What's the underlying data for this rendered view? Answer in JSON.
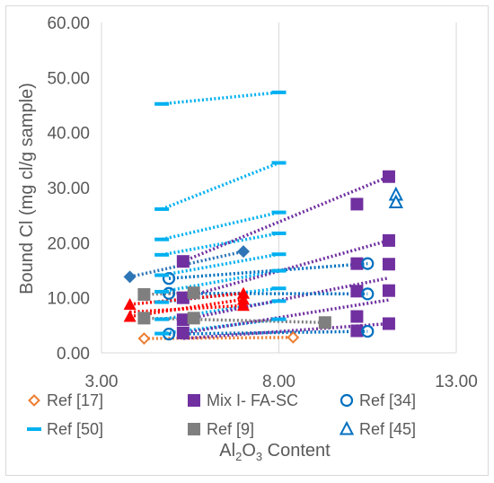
{
  "chart_data": {
    "type": "scatter",
    "title": "",
    "xlabel": "Al2O3 Content",
    "xlabel_parts": {
      "pre": "Al",
      "sub1": "2",
      "mid": "O",
      "sub2": "3",
      "post": " Content"
    },
    "ylabel": "Bound Cl (mg cl/g sample)",
    "xlim": [
      3.0,
      13.0
    ],
    "ylim": [
      0.0,
      60.0
    ],
    "x_ticks": [
      3.0,
      8.0,
      13.0
    ],
    "x_tick_labels": [
      "3.00",
      "8.00",
      "13.00"
    ],
    "y_ticks": [
      0,
      10,
      20,
      30,
      40,
      50,
      60
    ],
    "y_tick_labels": [
      "0.00",
      "10.00",
      "20.00",
      "30.00",
      "40.00",
      "50.00",
      "60.00"
    ],
    "grid": "vertical",
    "legend_position": "bottom",
    "legend_rows": [
      [
        "Ref [17]",
        "Mix I- FA-SC",
        "Ref [34]"
      ],
      [
        "Ref [50]",
        "Ref [9]",
        "Ref [45]"
      ]
    ],
    "series": [
      {
        "name": "Ref [17]",
        "marker": "diamond-open",
        "color": "#ED7D31",
        "x": [
          4.2,
          8.4
        ],
        "y": [
          2.6,
          2.8
        ]
      },
      {
        "name": "Mix I- FA-SC",
        "marker": "square",
        "color": "#7030A0",
        "x": [
          5.3,
          5.3,
          5.3,
          5.3,
          10.2,
          10.2,
          10.2,
          10.2,
          10.2,
          11.1,
          11.1,
          11.1,
          11.1,
          11.1
        ],
        "y": [
          16.6,
          10.0,
          6.0,
          3.6,
          27.0,
          16.2,
          11.2,
          6.6,
          4.0,
          32.0,
          20.4,
          16.1,
          11.3,
          5.3
        ]
      },
      {
        "name": "Ref [34]",
        "marker": "circle-open",
        "color": "#0070C0",
        "x": [
          4.9,
          4.9,
          4.9,
          10.5,
          10.5,
          10.5
        ],
        "y": [
          13.5,
          10.8,
          3.4,
          16.2,
          10.7,
          3.9
        ]
      },
      {
        "name": "Ref [50]",
        "marker": "dash",
        "color": "#00B0F0",
        "x": [
          4.7,
          4.7,
          4.7,
          4.7,
          4.7,
          4.7,
          4.7,
          4.7,
          4.7,
          8.0,
          8.0,
          8.0,
          8.0,
          8.0,
          8.0,
          8.0,
          8.0,
          8.0
        ],
        "y": [
          45.2,
          26.1,
          20.6,
          17.8,
          14.1,
          11.1,
          9.2,
          6.1,
          3.5,
          47.3,
          34.5,
          25.5,
          21.7,
          17.9,
          14.9,
          11.7,
          9.4,
          6.1
        ]
      },
      {
        "name": "Ref [9]",
        "marker": "square",
        "color": "#7F7F7F",
        "x": [
          4.2,
          4.2,
          5.6,
          5.6,
          9.3
        ],
        "y": [
          10.6,
          6.3,
          10.9,
          6.3,
          5.5
        ]
      },
      {
        "name": "Ref [45]",
        "marker": "triangle-open",
        "color": "#0070C0",
        "x": [
          11.3,
          11.3
        ],
        "y": [
          28.7,
          27.3
        ]
      },
      {
        "name": "",
        "marker": "diamond",
        "color": "#2E75B6",
        "x": [
          3.8,
          7.0
        ],
        "y": [
          13.8,
          18.4
        ]
      },
      {
        "name": "",
        "marker": "triangle",
        "color": "#FF0000",
        "x": [
          3.8,
          3.8,
          7.0,
          7.0,
          7.0
        ],
        "y": [
          8.8,
          6.6,
          10.8,
          9.7,
          8.6
        ]
      }
    ],
    "trend_lines": [
      {
        "color": "#ED7D31",
        "from": [
          4.2,
          2.6
        ],
        "to": [
          8.4,
          2.8
        ]
      },
      {
        "color": "#00B0F0",
        "from": [
          4.7,
          45.2
        ],
        "to": [
          8.0,
          47.3
        ]
      },
      {
        "color": "#00B0F0",
        "from": [
          4.7,
          26.1
        ],
        "to": [
          8.0,
          34.5
        ]
      },
      {
        "color": "#00B0F0",
        "from": [
          4.7,
          20.6
        ],
        "to": [
          8.0,
          25.5
        ]
      },
      {
        "color": "#00B0F0",
        "from": [
          4.7,
          17.8
        ],
        "to": [
          8.0,
          21.7
        ]
      },
      {
        "color": "#00B0F0",
        "from": [
          4.7,
          14.1
        ],
        "to": [
          8.0,
          17.9
        ]
      },
      {
        "color": "#00B0F0",
        "from": [
          4.7,
          11.1
        ],
        "to": [
          8.0,
          14.9
        ]
      },
      {
        "color": "#00B0F0",
        "from": [
          4.7,
          9.2
        ],
        "to": [
          8.0,
          11.7
        ]
      },
      {
        "color": "#00B0F0",
        "from": [
          4.7,
          6.1
        ],
        "to": [
          8.0,
          9.4
        ]
      },
      {
        "color": "#00B0F0",
        "from": [
          4.7,
          3.5
        ],
        "to": [
          8.0,
          6.1
        ]
      },
      {
        "color": "#7030A0",
        "from": [
          5.3,
          16.6
        ],
        "to": [
          11.1,
          32.0
        ]
      },
      {
        "color": "#7030A0",
        "from": [
          5.3,
          10.0
        ],
        "to": [
          11.1,
          20.4
        ]
      },
      {
        "color": "#7030A0",
        "from": [
          5.3,
          6.0
        ],
        "to": [
          11.1,
          13.6
        ]
      },
      {
        "color": "#7030A0",
        "from": [
          5.3,
          3.6
        ],
        "to": [
          11.1,
          9.6
        ]
      },
      {
        "color": "#7030A0",
        "from": [
          5.3,
          2.6
        ],
        "to": [
          11.1,
          5.3
        ]
      },
      {
        "color": "#0070C0",
        "from": [
          4.9,
          13.5
        ],
        "to": [
          10.5,
          16.2
        ]
      },
      {
        "color": "#0070C0",
        "from": [
          4.9,
          10.8
        ],
        "to": [
          10.5,
          10.7
        ]
      },
      {
        "color": "#0070C0",
        "from": [
          4.9,
          3.4
        ],
        "to": [
          10.5,
          3.9
        ]
      },
      {
        "color": "#7F7F7F",
        "from": [
          4.2,
          10.6
        ],
        "to": [
          5.6,
          10.9
        ]
      },
      {
        "color": "#7F7F7F",
        "from": [
          4.2,
          6.3
        ],
        "to": [
          9.3,
          5.5
        ]
      },
      {
        "color": "#2E75B6",
        "from": [
          3.8,
          13.8
        ],
        "to": [
          7.0,
          18.4
        ]
      },
      {
        "color": "#FF0000",
        "from": [
          3.8,
          8.8
        ],
        "to": [
          7.0,
          10.8
        ]
      },
      {
        "color": "#FF0000",
        "from": [
          3.8,
          6.6
        ],
        "to": [
          7.0,
          9.7
        ]
      },
      {
        "color": "#FF0000",
        "from": [
          3.8,
          7.4
        ],
        "to": [
          7.0,
          8.6
        ]
      }
    ]
  }
}
